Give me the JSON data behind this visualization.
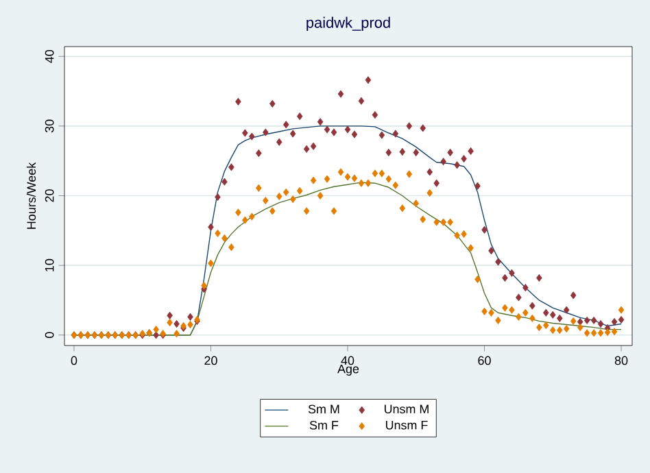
{
  "chart_data": {
    "type": "scatter",
    "title": "paidwk_prod",
    "xlabel": "Age",
    "ylabel": "Hours/Week",
    "xlim": [
      -1.4,
      81.6
    ],
    "ylim": [
      -1.5,
      41.4
    ],
    "xticks": [
      0,
      20,
      40,
      60,
      80
    ],
    "yticks": [
      0,
      10,
      20,
      30,
      40
    ],
    "grid": "y",
    "legend": "bottom",
    "marker": "diamond",
    "x": [
      0,
      1,
      2,
      3,
      4,
      5,
      6,
      7,
      8,
      9,
      10,
      11,
      12,
      13,
      14,
      15,
      16,
      17,
      18,
      19,
      20,
      21,
      22,
      23,
      24,
      25,
      26,
      27,
      28,
      29,
      30,
      31,
      32,
      33,
      34,
      35,
      36,
      37,
      38,
      39,
      40,
      41,
      42,
      43,
      44,
      45,
      46,
      47,
      48,
      49,
      50,
      51,
      52,
      53,
      54,
      55,
      56,
      57,
      58,
      59,
      60,
      61,
      62,
      63,
      64,
      65,
      66,
      67,
      68,
      69,
      70,
      71,
      72,
      73,
      74,
      75,
      76,
      77,
      78,
      79,
      80
    ],
    "series": [
      {
        "name": "Sm M",
        "type": "line",
        "marker": "none",
        "color": "#1a476f",
        "x": [
          0,
          17,
          18,
          19,
          20,
          21,
          22,
          23,
          24,
          25,
          26,
          28,
          30,
          32,
          34,
          36,
          38,
          40,
          42,
          44,
          46,
          48,
          50,
          52,
          53,
          55,
          57,
          58,
          59,
          60,
          61,
          62,
          64,
          66,
          68,
          70,
          72,
          74,
          76,
          78,
          80
        ],
        "values": [
          0,
          0,
          2,
          8,
          15,
          20.5,
          23.5,
          25.5,
          27.3,
          27.9,
          28.3,
          28.8,
          29.2,
          29.6,
          29.8,
          30,
          30,
          30,
          30,
          29.9,
          29,
          28.2,
          27,
          25.5,
          24.8,
          24.6,
          24.2,
          23,
          20.5,
          16.5,
          13,
          11,
          8.8,
          6.8,
          5,
          3.9,
          3.2,
          2.5,
          2.1,
          1.3,
          1.6
        ]
      },
      {
        "name": "Unsm M",
        "color": "#90353b",
        "values": [
          0,
          0,
          0,
          0,
          0,
          0,
          0,
          0,
          0,
          0,
          0,
          0.3,
          0,
          0,
          2.8,
          1.6,
          1.0,
          2.6,
          2.0,
          6.6,
          15.5,
          19.8,
          22.0,
          24.1,
          33.5,
          29.0,
          28.5,
          26.1,
          29.1,
          33.2,
          27.7,
          30.2,
          28.9,
          31.4,
          26.7,
          27.1,
          30.6,
          29.5,
          29.1,
          34.6,
          29.5,
          28.8,
          33.6,
          36.6,
          31.6,
          28.7,
          26.2,
          28.9,
          26.3,
          30.0,
          26.2,
          29.7,
          23.4,
          21.8,
          24.9,
          26.2,
          24.4,
          25.3,
          26.4,
          21.4,
          15.1,
          12.1,
          10.5,
          8.2,
          8.9,
          5.4,
          6.8,
          4.2,
          8.2,
          3.2,
          2.9,
          2.4,
          3.6,
          5.7,
          1.9,
          2.1,
          2.1,
          1.6,
          1.0,
          1.9,
          2.2
        ]
      },
      {
        "name": "Sm F",
        "type": "line",
        "marker": "none",
        "color": "#55752f",
        "x": [
          0,
          17,
          18,
          19,
          20,
          21,
          22,
          23,
          24,
          26,
          28,
          30,
          32,
          34,
          36,
          38,
          40,
          42,
          44,
          46,
          48,
          50,
          52,
          54,
          56,
          58,
          59,
          60,
          61,
          62,
          64,
          66,
          68,
          70,
          72,
          74,
          76,
          78,
          80
        ],
        "values": [
          0,
          0,
          2,
          5.5,
          9,
          11.5,
          13.3,
          14.5,
          15.5,
          17,
          18.1,
          19,
          19.6,
          20.1,
          20.8,
          21.3,
          21.6,
          21.9,
          21.8,
          21.2,
          20,
          18.5,
          17.2,
          16,
          14.3,
          11.8,
          9,
          6,
          3.9,
          3.2,
          2.8,
          2.5,
          2,
          1.7,
          1.5,
          1.3,
          1.1,
          0.8,
          0.8
        ]
      },
      {
        "name": "Unsm F",
        "color": "#e37e00",
        "values": [
          0,
          0,
          0,
          0,
          0,
          0,
          0,
          0,
          0,
          0,
          0.2,
          0.3,
          0.8,
          0.2,
          1.8,
          0.2,
          1.3,
          1.5,
          2.2,
          7.1,
          10.3,
          14.6,
          13.9,
          12.6,
          17.6,
          16.5,
          17.0,
          21.1,
          19.3,
          17.8,
          19.9,
          20.5,
          19.5,
          20.7,
          17.8,
          22.2,
          20.0,
          22.4,
          17.8,
          23.4,
          22.7,
          22.5,
          21.8,
          21.8,
          23.2,
          23.2,
          22.4,
          21.5,
          18.2,
          23.1,
          18.9,
          16.6,
          20.4,
          16.2,
          16.2,
          16.2,
          14.3,
          14.5,
          12.5,
          8.0,
          3.4,
          3.2,
          2.1,
          3.9,
          3.6,
          2.6,
          3.2,
          2.4,
          1.1,
          1.4,
          0.7,
          0.7,
          0.9,
          2.0,
          1.1,
          0.3,
          0.3,
          0.3,
          0.4,
          0.5,
          3.6
        ]
      }
    ]
  }
}
